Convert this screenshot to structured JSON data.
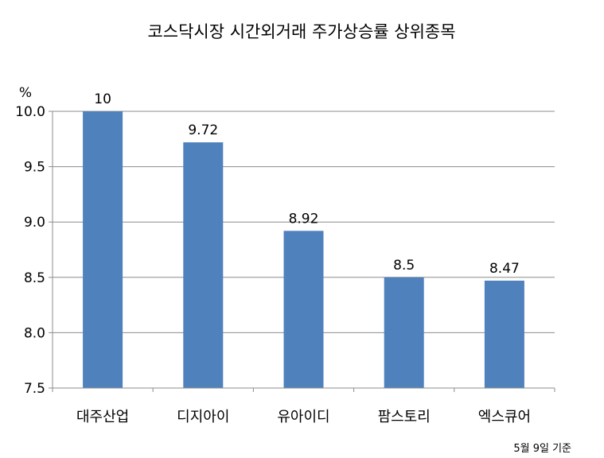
{
  "chart_data": {
    "type": "bar",
    "title": "코스닥시장 시간외거래  주가상승률 상위종목",
    "ylabel": "%",
    "xlabel": "",
    "categories": [
      "대주산업",
      "디지아이",
      "유아이디",
      "팜스토리",
      "엑스큐어"
    ],
    "values": [
      10,
      9.72,
      8.92,
      8.5,
      8.47
    ],
    "data_labels": [
      "10",
      "9.72",
      "8.92",
      "8.5",
      "8.47"
    ],
    "ylim": [
      7.5,
      10.0
    ],
    "yticks": [
      7.5,
      8.0,
      8.5,
      9.0,
      9.5,
      10.0
    ],
    "ytick_labels": [
      "7.5",
      "8.0",
      "8.5",
      "9.0",
      "9.5",
      "10.0"
    ],
    "grid": true,
    "legend": "none",
    "bar_color": "#4f81bd",
    "note": "5월 9일 기준"
  }
}
